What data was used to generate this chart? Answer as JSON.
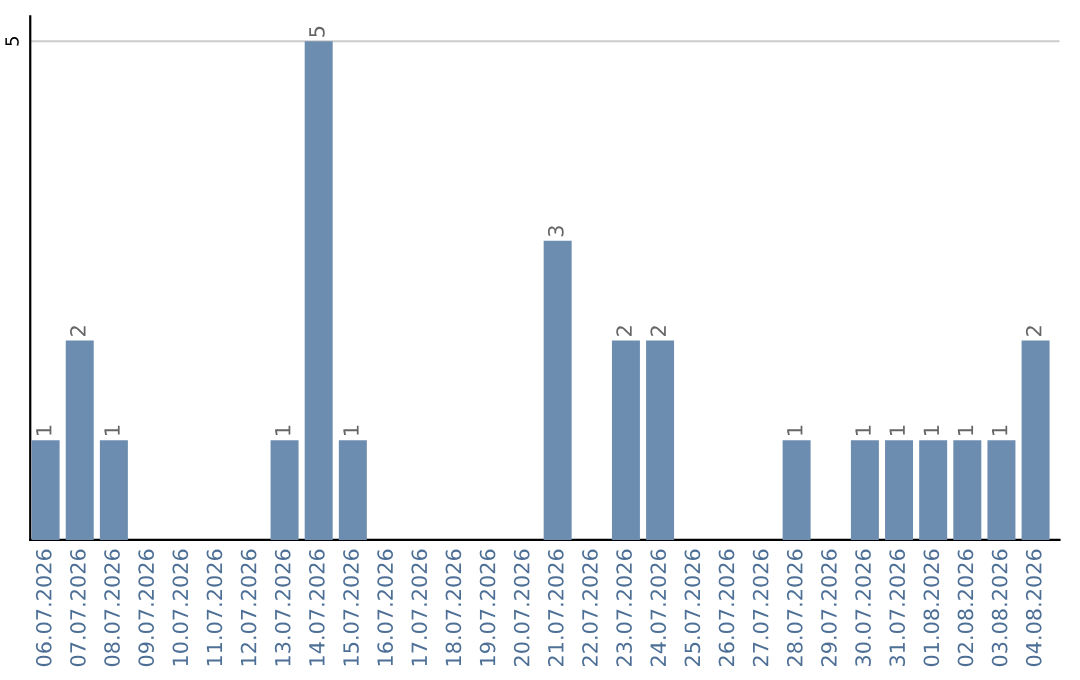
{
  "chart_data": {
    "type": "bar",
    "categories": [
      "06.07.2026",
      "07.07.2026",
      "08.07.2026",
      "09.07.2026",
      "10.07.2026",
      "11.07.2026",
      "12.07.2026",
      "13.07.2026",
      "14.07.2026",
      "15.07.2026",
      "16.07.2026",
      "17.07.2026",
      "18.07.2026",
      "19.07.2026",
      "20.07.2026",
      "21.07.2026",
      "22.07.2026",
      "23.07.2026",
      "24.07.2026",
      "25.07.2026",
      "26.07.2026",
      "27.07.2026",
      "28.07.2026",
      "29.07.2026",
      "30.07.2026",
      "31.07.2026",
      "01.08.2026",
      "02.08.2026",
      "03.08.2026",
      "04.08.2026"
    ],
    "values": [
      1,
      2,
      1,
      0,
      0,
      0,
      0,
      1,
      5,
      1,
      0,
      0,
      0,
      0,
      0,
      3,
      0,
      2,
      2,
      0,
      0,
      0,
      1,
      0,
      1,
      1,
      1,
      1,
      1,
      2
    ],
    "value_labels": [
      "1",
      "2",
      "1",
      null,
      null,
      null,
      null,
      "1",
      "5",
      "1",
      null,
      null,
      null,
      null,
      null,
      "3",
      null,
      "2",
      "2",
      null,
      null,
      null,
      "1",
      null,
      "1",
      "1",
      "1",
      "1",
      "1",
      "2"
    ],
    "color": "#6d8db0",
    "ylim": [
      0,
      5.25
    ],
    "yticks": [
      5
    ],
    "grid": "y"
  }
}
